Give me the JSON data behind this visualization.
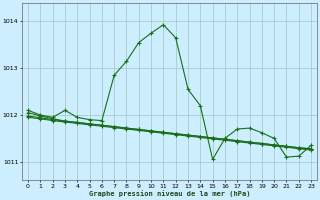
{
  "title": "Graphe pression niveau de la mer (hPa)",
  "bg_color": "#cceeff",
  "grid_color": "#aacccc",
  "line_color": "#1a6e1a",
  "xlim": [
    -0.5,
    23.5
  ],
  "ylim": [
    1010.6,
    1014.4
  ],
  "yticks": [
    1011,
    1012,
    1013,
    1014
  ],
  "xticks": [
    0,
    1,
    2,
    3,
    4,
    5,
    6,
    7,
    8,
    9,
    10,
    11,
    12,
    13,
    14,
    15,
    16,
    17,
    18,
    19,
    20,
    21,
    22,
    23
  ],
  "series1": [
    [
      0,
      1012.1
    ],
    [
      1,
      1012.0
    ],
    [
      2,
      1011.95
    ],
    [
      3,
      1012.1
    ],
    [
      4,
      1011.95
    ],
    [
      5,
      1011.9
    ],
    [
      6,
      1011.88
    ],
    [
      7,
      1012.85
    ],
    [
      8,
      1013.15
    ],
    [
      9,
      1013.55
    ],
    [
      10,
      1013.75
    ],
    [
      11,
      1013.93
    ],
    [
      12,
      1013.65
    ],
    [
      13,
      1012.55
    ],
    [
      14,
      1012.2
    ],
    [
      15,
      1011.05
    ],
    [
      16,
      1011.5
    ],
    [
      17,
      1011.7
    ],
    [
      18,
      1011.72
    ],
    [
      19,
      1011.62
    ],
    [
      20,
      1011.5
    ],
    [
      21,
      1011.1
    ],
    [
      22,
      1011.12
    ],
    [
      23,
      1011.35
    ]
  ],
  "series2": [
    [
      0,
      1012.05
    ],
    [
      1,
      1011.98
    ],
    [
      2,
      1011.92
    ],
    [
      3,
      1011.87
    ],
    [
      4,
      1011.84
    ],
    [
      5,
      1011.81
    ],
    [
      6,
      1011.78
    ],
    [
      7,
      1011.75
    ],
    [
      8,
      1011.72
    ],
    [
      9,
      1011.69
    ],
    [
      10,
      1011.66
    ],
    [
      11,
      1011.63
    ],
    [
      12,
      1011.6
    ],
    [
      13,
      1011.57
    ],
    [
      14,
      1011.54
    ],
    [
      15,
      1011.51
    ],
    [
      16,
      1011.48
    ],
    [
      17,
      1011.45
    ],
    [
      18,
      1011.42
    ],
    [
      19,
      1011.39
    ],
    [
      20,
      1011.36
    ],
    [
      21,
      1011.33
    ],
    [
      22,
      1011.3
    ],
    [
      23,
      1011.28
    ]
  ],
  "series3": [
    [
      0,
      1011.98
    ],
    [
      1,
      1011.94
    ],
    [
      2,
      1011.9
    ],
    [
      3,
      1011.87
    ],
    [
      4,
      1011.84
    ],
    [
      5,
      1011.81
    ],
    [
      6,
      1011.78
    ],
    [
      7,
      1011.75
    ],
    [
      8,
      1011.72
    ],
    [
      9,
      1011.69
    ],
    [
      10,
      1011.66
    ],
    [
      11,
      1011.63
    ],
    [
      12,
      1011.6
    ],
    [
      13,
      1011.57
    ],
    [
      14,
      1011.54
    ],
    [
      15,
      1011.51
    ],
    [
      16,
      1011.48
    ],
    [
      17,
      1011.45
    ],
    [
      18,
      1011.42
    ],
    [
      19,
      1011.39
    ],
    [
      20,
      1011.36
    ],
    [
      21,
      1011.33
    ],
    [
      22,
      1011.3
    ],
    [
      23,
      1011.27
    ]
  ],
  "series4": [
    [
      0,
      1011.95
    ],
    [
      1,
      1011.92
    ],
    [
      2,
      1011.88
    ],
    [
      3,
      1011.85
    ],
    [
      4,
      1011.82
    ],
    [
      5,
      1011.79
    ],
    [
      6,
      1011.76
    ],
    [
      7,
      1011.73
    ],
    [
      8,
      1011.7
    ],
    [
      9,
      1011.67
    ],
    [
      10,
      1011.64
    ],
    [
      11,
      1011.61
    ],
    [
      12,
      1011.58
    ],
    [
      13,
      1011.55
    ],
    [
      14,
      1011.52
    ],
    [
      15,
      1011.49
    ],
    [
      16,
      1011.46
    ],
    [
      17,
      1011.43
    ],
    [
      18,
      1011.4
    ],
    [
      19,
      1011.37
    ],
    [
      20,
      1011.34
    ],
    [
      21,
      1011.31
    ],
    [
      22,
      1011.28
    ],
    [
      23,
      1011.25
    ]
  ]
}
